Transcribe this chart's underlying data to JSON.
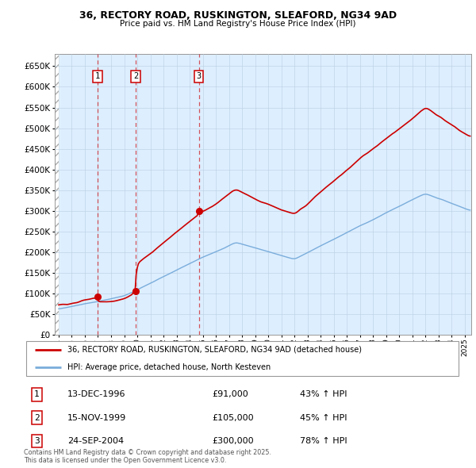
{
  "title": "36, RECTORY ROAD, RUSKINGTON, SLEAFORD, NG34 9AD",
  "subtitle": "Price paid vs. HM Land Registry's House Price Index (HPI)",
  "property_label": "36, RECTORY ROAD, RUSKINGTON, SLEAFORD, NG34 9AD (detached house)",
  "hpi_label": "HPI: Average price, detached house, North Kesteven",
  "sale_dates_decimal": [
    1996.958,
    1999.875,
    2004.708
  ],
  "sale_prices": [
    91000,
    105000,
    300000
  ],
  "sale_labels": [
    "1",
    "2",
    "3"
  ],
  "sale_label_texts": [
    "13-DEC-1996",
    "15-NOV-1999",
    "24-SEP-2004"
  ],
  "sale_prices_str": [
    "£91,000",
    "£105,000",
    "£300,000"
  ],
  "sale_hpi_str": [
    "43% ↑ HPI",
    "45% ↑ HPI",
    "78% ↑ HPI"
  ],
  "property_color": "#cc0000",
  "hpi_color": "#7aaddb",
  "plot_bg_color": "#ddeeff",
  "grid_color": "#b8cfe0",
  "ylim": [
    0,
    680000
  ],
  "yticks": [
    0,
    50000,
    100000,
    150000,
    200000,
    250000,
    300000,
    350000,
    400000,
    450000,
    500000,
    550000,
    600000,
    650000
  ],
  "footer": "Contains HM Land Registry data © Crown copyright and database right 2025.\nThis data is licensed under the Open Government Licence v3.0."
}
